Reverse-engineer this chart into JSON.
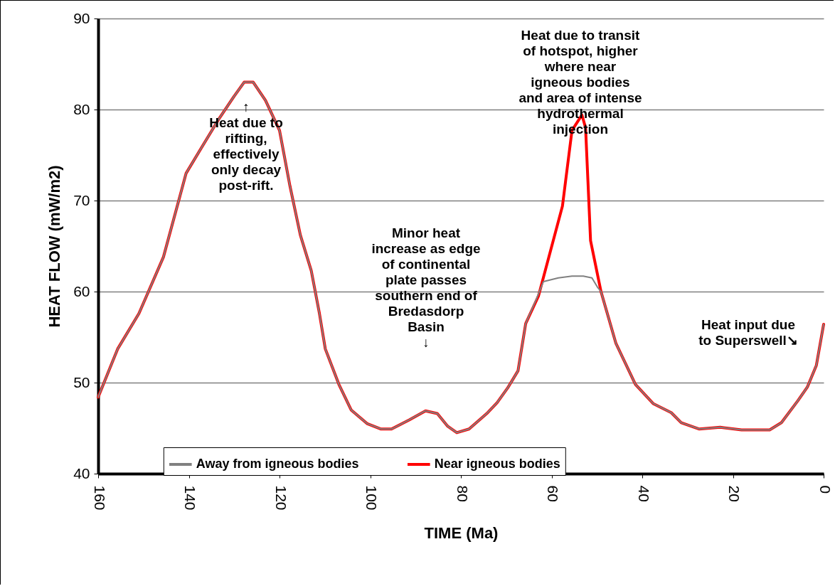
{
  "chart_data": {
    "type": "line",
    "xlabel": "TIME (Ma)",
    "ylabel": "HEAT FLOW (mW/m2)",
    "xlim": [
      160,
      0
    ],
    "xticks": [
      160,
      140,
      120,
      100,
      80,
      60,
      40,
      20,
      0
    ],
    "ylim": [
      40,
      90
    ],
    "yticks": [
      40,
      50,
      60,
      70,
      80,
      90
    ],
    "grid": "y",
    "legend": "bottom",
    "marker": "none",
    "line_style": "solid",
    "series": [
      {
        "name": "Away from igneous bodies",
        "color": "#808080",
        "x": [
          160,
          155.7,
          151,
          145.6,
          140.6,
          137.1,
          133.2,
          130.1,
          127.8,
          125.8,
          123.1,
          120,
          117.7,
          115.4,
          113,
          111.2,
          109.9,
          106.9,
          104.2,
          100.7,
          97.6,
          95.3,
          91.4,
          87.8,
          85.2,
          82.9,
          80.9,
          78.2,
          74.3,
          72,
          69.7,
          67.4,
          65.7,
          63.5,
          61.8,
          58.5,
          55.5,
          53,
          51.1,
          49.9,
          49.1,
          45.8,
          41.5,
          37.6,
          33.6,
          31.4,
          27.4,
          22.8,
          18.1,
          11.9,
          9.3,
          5.7,
          3.6,
          1.6,
          0
        ],
        "values": [
          48.4,
          53.7,
          57.6,
          63.8,
          73,
          75.9,
          79.1,
          81.4,
          83,
          83,
          81,
          77.7,
          71.6,
          66.2,
          62.3,
          57.6,
          53.7,
          49.8,
          47,
          45.5,
          44.9,
          44.9,
          45.9,
          46.9,
          46.6,
          45.2,
          44.5,
          44.9,
          46.6,
          47.8,
          49.4,
          51.3,
          56.5,
          59,
          61.1,
          61.5,
          61.7,
          61.7,
          61.5,
          60.5,
          60,
          54.3,
          49.8,
          47.7,
          46.7,
          45.6,
          44.9,
          45.1,
          44.8,
          44.8,
          45.6,
          48,
          49.5,
          51.9,
          56.4
        ]
      },
      {
        "name": "Near igneous bodies",
        "color": "#ff0000",
        "x": [
          160,
          155.7,
          151,
          145.6,
          140.6,
          137.1,
          133.2,
          130.1,
          127.8,
          125.8,
          123.1,
          120,
          117.7,
          115.4,
          113,
          111.2,
          109.9,
          106.9,
          104.2,
          100.7,
          97.6,
          95.3,
          91.4,
          87.8,
          85.2,
          82.9,
          80.9,
          78.2,
          74.3,
          72,
          69.7,
          67.4,
          65.7,
          62.9,
          57.6,
          55.5,
          53.3,
          52.5,
          51.4,
          49.1,
          45.8,
          41.5,
          37.6,
          33.6,
          31.4,
          27.4,
          22.8,
          18.1,
          11.9,
          9.3,
          5.7,
          3.6,
          1.6,
          0
        ],
        "values": [
          48.4,
          53.7,
          57.6,
          63.8,
          73,
          75.9,
          79.1,
          81.4,
          83,
          83,
          81,
          77.7,
          71.6,
          66.2,
          62.3,
          57.6,
          53.7,
          49.8,
          47,
          45.5,
          44.9,
          44.9,
          45.9,
          46.9,
          46.6,
          45.2,
          44.5,
          44.9,
          46.6,
          47.8,
          49.4,
          51.3,
          56.5,
          59.5,
          69.4,
          77.7,
          79.4,
          78,
          65.6,
          60,
          54.3,
          49.8,
          47.7,
          46.7,
          45.6,
          44.9,
          45.1,
          44.8,
          44.8,
          45.6,
          48,
          49.5,
          51.9,
          56.4
        ]
      }
    ],
    "annotations": [
      "↑\nHeat due to\nrifting,\neffectively\nonly decay\npost-rift.",
      "Minor heat\nincrease as edge\nof continental\nplate passes\nsouthern end of\nBredasdorp\nBasin\n↓",
      "Heat due to transit\nof hotspot, higher\nwhere near\nigneous bodies\nand area of intense\nhydrothermal\ninjection",
      "Heat input due\nto Superswell↘"
    ]
  }
}
